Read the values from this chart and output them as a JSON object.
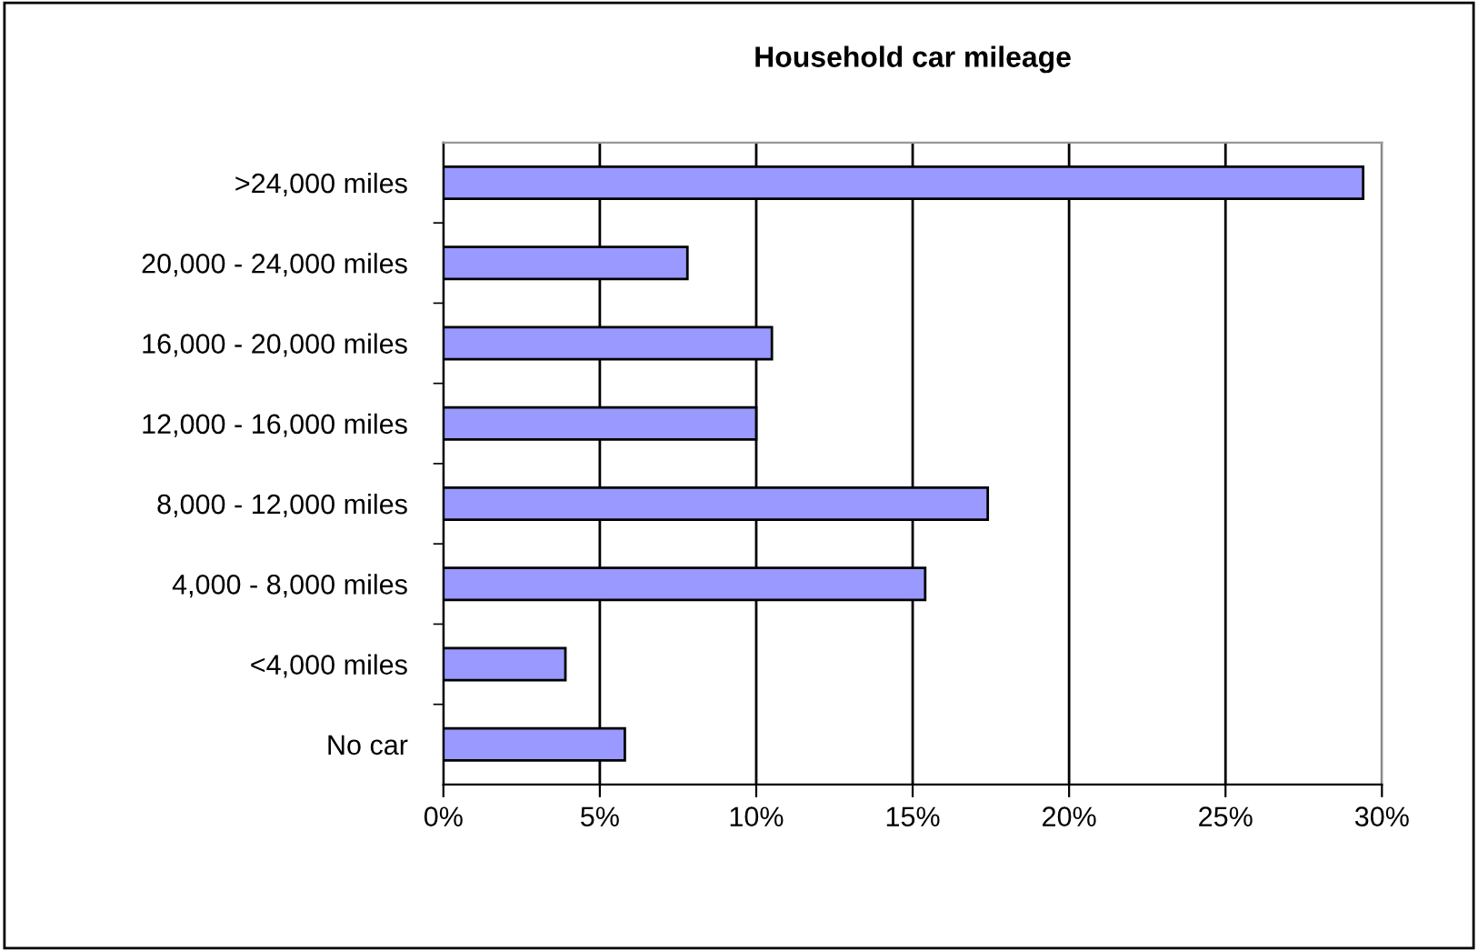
{
  "chart_data": {
    "type": "bar",
    "orientation": "horizontal",
    "title": "Household car mileage",
    "categories": [
      ">24,000 miles",
      "20,000 - 24,000 miles",
      "16,000 - 20,000 miles",
      "12,000 - 16,000 miles",
      "8,000 - 12,000 miles",
      "4,000 - 8,000 miles",
      "<4,000 miles",
      "No car"
    ],
    "values": [
      29.4,
      7.8,
      10.5,
      10.0,
      17.4,
      15.4,
      3.9,
      5.8
    ],
    "color": "#9999ff",
    "xlim": [
      0,
      30
    ],
    "xticks": [
      {
        "value": 0,
        "label": "0%"
      },
      {
        "value": 5,
        "label": "5%"
      },
      {
        "value": 10,
        "label": "10%"
      },
      {
        "value": 15,
        "label": "15%"
      },
      {
        "value": 20,
        "label": "20%"
      },
      {
        "value": 25,
        "label": "25%"
      },
      {
        "value": 30,
        "label": "30%"
      }
    ],
    "grid": "x",
    "legend": false
  }
}
